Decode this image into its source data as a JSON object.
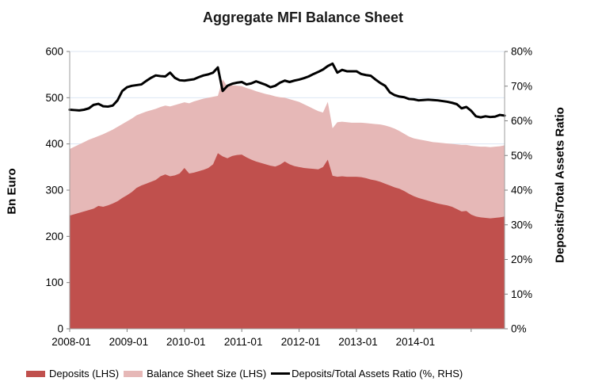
{
  "title": "Aggregate MFI Balance Sheet",
  "left_axis": {
    "title": "Bn Euro",
    "min": 0,
    "max": 600,
    "step": 100,
    "tick_labels": [
      "0",
      "100",
      "200",
      "300",
      "400",
      "500",
      "600"
    ]
  },
  "right_axis": {
    "title": "Deposits/Total Assets Ratio",
    "min": 0,
    "max": 80,
    "step": 10,
    "tick_labels": [
      "0%",
      "10%",
      "20%",
      "30%",
      "40%",
      "50%",
      "60%",
      "70%",
      "80%"
    ]
  },
  "x_axis": {
    "tick_labels": [
      "2008-01",
      "2009-01",
      "2010-01",
      "2011-01",
      "2012-01",
      "2013-01",
      "2014-01"
    ],
    "label_every_n_points": 12
  },
  "legend": {
    "deposits_label": "Deposits (LHS)",
    "balance_label": "Balance Sheet Size (LHS)",
    "ratio_label": "Deposits/Total Assets Ratio (%, RHS)"
  },
  "colors": {
    "deposits": "#c0504d",
    "balance": "#e6b8b7",
    "ratio_line": "#000000",
    "gridline": "#dce6f2",
    "axis": "#9e9e9e",
    "tick": "#7f7f7f",
    "text": "#000000"
  },
  "chart_data": {
    "type": "area",
    "title": "Aggregate MFI Balance Sheet",
    "xlabel": "",
    "ylabel_left": "Bn Euro",
    "ylabel_right": "Deposits/Total Assets Ratio",
    "x_start": "2008-01",
    "x_freq": "monthly",
    "n_points": 92,
    "ylim_left": [
      0,
      600
    ],
    "ylim_right_percent": [
      0,
      80
    ],
    "grid": true,
    "legend_position": "bottom",
    "series": [
      {
        "name": "Deposits (LHS)",
        "type": "area",
        "axis": "left",
        "color": "#c0504d",
        "values": [
          245,
          248,
          251,
          254,
          257,
          260,
          266,
          264,
          267,
          271,
          276,
          283,
          289,
          296,
          305,
          310,
          314,
          318,
          322,
          330,
          334,
          330,
          332,
          336,
          348,
          336,
          338,
          341,
          344,
          348,
          356,
          380,
          373,
          369,
          374,
          376,
          377,
          371,
          366,
          362,
          359,
          356,
          353,
          351,
          355,
          362,
          356,
          352,
          350,
          348,
          347,
          346,
          345,
          350,
          366,
          331,
          329,
          330,
          329,
          329,
          329,
          328,
          326,
          323,
          321,
          318,
          314,
          310,
          306,
          303,
          298,
          292,
          287,
          283,
          280,
          277,
          274,
          271,
          269,
          267,
          264,
          259,
          254,
          255,
          247,
          243,
          241,
          240,
          239,
          240,
          241,
          243
        ]
      },
      {
        "name": "Balance Sheet Size (LHS)",
        "type": "area",
        "axis": "left",
        "color": "#e6b8b7",
        "values": [
          389,
          394,
          399,
          404,
          409,
          413,
          417,
          421,
          426,
          431,
          437,
          443,
          449,
          455,
          462,
          466,
          470,
          473,
          476,
          480,
          483,
          481,
          484,
          487,
          490,
          488,
          492,
          495,
          498,
          500,
          502,
          504,
          540,
          524,
          527,
          526,
          525,
          521,
          518,
          514,
          511,
          508,
          506,
          503,
          501,
          500,
          497,
          494,
          491,
          486,
          481,
          476,
          471,
          468,
          491,
          434,
          447,
          448,
          447,
          446,
          446,
          446,
          445,
          444,
          443,
          442,
          440,
          437,
          433,
          428,
          422,
          416,
          412,
          410,
          408,
          406,
          404,
          403,
          402,
          401,
          400,
          399,
          398,
          398,
          396,
          395,
          394,
          394,
          393,
          394,
          395,
          397
        ]
      },
      {
        "name": "Deposits/Total Assets Ratio (%, RHS)",
        "type": "line",
        "axis": "right",
        "color": "#000000",
        "values": [
          63.2,
          63.1,
          63.0,
          63.2,
          63.6,
          64.6,
          64.9,
          64.2,
          64.1,
          64.4,
          65.9,
          68.6,
          69.7,
          70.1,
          70.3,
          70.5,
          71.5,
          72.4,
          73.1,
          72.9,
          72.8,
          73.9,
          72.4,
          71.7,
          71.6,
          71.8,
          72.0,
          72.6,
          73.1,
          73.4,
          73.9,
          75.4,
          68.6,
          70.1,
          70.7,
          71.0,
          71.2,
          70.5,
          70.8,
          71.4,
          70.9,
          70.4,
          69.7,
          70.1,
          71.0,
          71.6,
          71.2,
          71.6,
          71.9,
          72.3,
          72.8,
          73.5,
          74.1,
          74.8,
          75.8,
          76.5,
          73.9,
          74.7,
          74.3,
          74.3,
          74.3,
          73.5,
          73.2,
          73.0,
          71.9,
          70.9,
          70.1,
          68.2,
          67.4,
          67.0,
          66.8,
          66.3,
          66.2,
          65.9,
          66.0,
          66.1,
          66.0,
          65.9,
          65.7,
          65.5,
          65.2,
          64.8,
          63.6,
          64.0,
          62.9,
          61.3,
          61.0,
          61.3,
          61.1,
          61.2,
          61.7,
          61.5
        ]
      }
    ]
  }
}
